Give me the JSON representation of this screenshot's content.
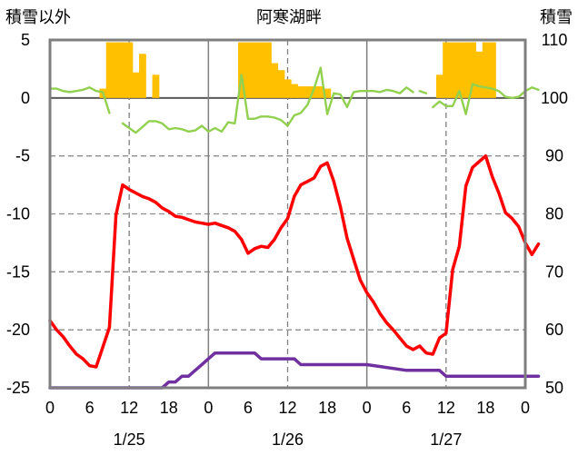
{
  "chart_data": {
    "type": "line",
    "title": "阿寒湖畔",
    "left_axis_label": "積雪以外",
    "right_axis_label": "積雪",
    "y_left": {
      "min": -25,
      "max": 5,
      "ticks": [
        5,
        0,
        -5,
        -10,
        -15,
        -20,
        -25
      ]
    },
    "y_right": {
      "min": 50,
      "max": 110,
      "ticks": [
        110,
        100,
        90,
        80,
        70,
        60,
        50
      ]
    },
    "x": {
      "min": 0,
      "max": 72,
      "hour_ticks": [
        0,
        6,
        12,
        18,
        0,
        6,
        12,
        18,
        0,
        6,
        12,
        18,
        0
      ]
    },
    "days": [
      "1/25",
      "1/26",
      "1/27"
    ],
    "day_label_hours": [
      12,
      36,
      60
    ],
    "grid": "dashed",
    "colors": {
      "bars": "#FFC000",
      "red": "#FF0000",
      "green": "#92D050",
      "purple": "#7030A0"
    },
    "series": [
      {
        "axis": "left",
        "color": "#FF0000",
        "values": [
          [
            0,
            -19.2
          ],
          [
            1,
            -20.0
          ],
          [
            2,
            -20.6
          ],
          [
            3,
            -21.4
          ],
          [
            4,
            -22.1
          ],
          [
            5,
            -22.5
          ],
          [
            6,
            -23.1
          ],
          [
            7,
            -23.2
          ],
          [
            8,
            -21.5
          ],
          [
            9,
            -19.8
          ],
          [
            10,
            -10.1
          ],
          [
            11,
            -7.5
          ],
          [
            12,
            -7.9
          ],
          [
            13,
            -8.2
          ],
          [
            14,
            -8.5
          ],
          [
            15,
            -8.7
          ],
          [
            16,
            -9.0
          ],
          [
            17,
            -9.5
          ],
          [
            18,
            -9.8
          ],
          [
            19,
            -10.2
          ],
          [
            20,
            -10.3
          ],
          [
            21,
            -10.5
          ],
          [
            22,
            -10.7
          ],
          [
            23,
            -10.8
          ],
          [
            24,
            -10.9
          ],
          [
            25,
            -10.8
          ],
          [
            26,
            -11.0
          ],
          [
            27,
            -11.2
          ],
          [
            28,
            -11.5
          ],
          [
            29,
            -12.2
          ],
          [
            30,
            -13.4
          ],
          [
            31,
            -13.0
          ],
          [
            32,
            -12.8
          ],
          [
            33,
            -12.9
          ],
          [
            34,
            -12.2
          ],
          [
            35,
            -11.2
          ],
          [
            36,
            -10.4
          ],
          [
            37,
            -8.5
          ],
          [
            38,
            -7.5
          ],
          [
            39,
            -7.2
          ],
          [
            40,
            -6.9
          ],
          [
            41,
            -5.9
          ],
          [
            42,
            -5.6
          ],
          [
            43,
            -7.2
          ],
          [
            44,
            -9.4
          ],
          [
            45,
            -12.1
          ],
          [
            46,
            -13.9
          ],
          [
            47,
            -15.7
          ],
          [
            48,
            -16.8
          ],
          [
            49,
            -17.6
          ],
          [
            50,
            -18.6
          ],
          [
            51,
            -19.4
          ],
          [
            52,
            -20.0
          ],
          [
            53,
            -20.7
          ],
          [
            54,
            -21.4
          ],
          [
            55,
            -21.7
          ],
          [
            56,
            -21.4
          ],
          [
            57,
            -22.0
          ],
          [
            58,
            -22.1
          ],
          [
            59,
            -20.7
          ],
          [
            60,
            -20.3
          ],
          [
            61,
            -14.8
          ],
          [
            62,
            -12.8
          ],
          [
            63,
            -7.6
          ],
          [
            64,
            -6.0
          ],
          [
            65,
            -5.5
          ],
          [
            66,
            -5.0
          ],
          [
            67,
            -6.8
          ],
          [
            68,
            -8.2
          ],
          [
            69,
            -9.9
          ],
          [
            70,
            -10.4
          ],
          [
            71,
            -11.1
          ],
          [
            72,
            -12.5
          ],
          [
            73,
            -13.5
          ],
          [
            74,
            -12.6
          ]
        ]
      },
      {
        "axis": "left",
        "color": "#92D050",
        "values": [
          [
            0,
            0.8
          ],
          [
            1,
            0.8
          ],
          [
            2,
            0.6
          ],
          [
            3,
            0.5
          ],
          [
            4,
            0.6
          ],
          [
            5,
            0.7
          ],
          [
            6,
            0.9
          ],
          [
            7,
            0.6
          ],
          [
            8,
            0.5
          ],
          [
            9,
            -1.3
          ],
          [
            null,
            null
          ],
          [
            11,
            -2.2
          ],
          [
            12,
            -2.6
          ],
          [
            13,
            -3.0
          ],
          [
            14,
            -2.5
          ],
          [
            15,
            -2.0
          ],
          [
            16,
            -2.0
          ],
          [
            17,
            -2.2
          ],
          [
            18,
            -2.7
          ],
          [
            19,
            -2.6
          ],
          [
            20,
            -2.7
          ],
          [
            21,
            -2.9
          ],
          [
            22,
            -2.8
          ],
          [
            23,
            -2.4
          ],
          [
            24,
            -2.9
          ],
          [
            25,
            -2.6
          ],
          [
            26,
            -2.9
          ],
          [
            27,
            -2.1
          ],
          [
            28,
            -2.2
          ],
          [
            29,
            2.0
          ],
          [
            30,
            -1.8
          ],
          [
            31,
            -1.8
          ],
          [
            32,
            -1.6
          ],
          [
            33,
            -1.6
          ],
          [
            34,
            -1.7
          ],
          [
            35,
            -1.9
          ],
          [
            36,
            -2.4
          ],
          [
            37,
            -1.5
          ],
          [
            38,
            -1.3
          ],
          [
            39,
            -0.6
          ],
          [
            40,
            0.8
          ],
          [
            41,
            2.6
          ],
          [
            42,
            -1.4
          ],
          [
            43,
            0.4
          ],
          [
            44,
            0.3
          ],
          [
            45,
            -0.8
          ],
          [
            46,
            0.5
          ],
          [
            47,
            0.6
          ],
          [
            48,
            0.6
          ],
          [
            49,
            0.6
          ],
          [
            50,
            0.5
          ],
          [
            51,
            0.7
          ],
          [
            52,
            0.6
          ],
          [
            53,
            0.4
          ],
          [
            54,
            0.9
          ],
          [
            55,
            0.5
          ],
          [
            null,
            null
          ],
          [
            56,
            0.6
          ],
          [
            57,
            0.4
          ],
          [
            null,
            null
          ],
          [
            58,
            -0.8
          ],
          [
            59,
            -0.3
          ],
          [
            60,
            -0.7
          ],
          [
            61,
            -0.7
          ],
          [
            62,
            0.6
          ],
          [
            63,
            -1.4
          ],
          [
            64,
            1.2
          ],
          [
            65,
            1.0
          ],
          [
            66,
            0.9
          ],
          [
            67,
            0.8
          ],
          [
            68,
            0.6
          ],
          [
            69,
            0.1
          ],
          [
            70,
            0.0
          ],
          [
            71,
            0.1
          ],
          [
            72,
            0.6
          ],
          [
            73,
            0.9
          ],
          [
            74,
            0.7
          ]
        ]
      },
      {
        "axis": "right",
        "color": "#7030A0",
        "values": [
          [
            0,
            50
          ],
          [
            16,
            50
          ],
          [
            17,
            50
          ],
          [
            18,
            51
          ],
          [
            19,
            51
          ],
          [
            20,
            52
          ],
          [
            21,
            52
          ],
          [
            22,
            53
          ],
          [
            23,
            54
          ],
          [
            24,
            55
          ],
          [
            25,
            56
          ],
          [
            31,
            56
          ],
          [
            32,
            55
          ],
          [
            37,
            55
          ],
          [
            38,
            54
          ],
          [
            47,
            54
          ],
          [
            48,
            54
          ],
          [
            54,
            53
          ],
          [
            55,
            53
          ],
          [
            56,
            53
          ],
          [
            57,
            53
          ],
          [
            58,
            53
          ],
          [
            59,
            53
          ],
          [
            60,
            52
          ],
          [
            74,
            52
          ]
        ]
      }
    ],
    "bars": [
      {
        "hour": 8,
        "value": 0.8
      },
      {
        "hour": 9,
        "value": 4.8
      },
      {
        "hour": 10,
        "value": 4.8
      },
      {
        "hour": 11,
        "value": 4.8
      },
      {
        "hour": 12,
        "value": 4.8
      },
      {
        "hour": 13,
        "value": 2.2
      },
      {
        "hour": 14,
        "value": 3.8
      },
      {
        "hour": 16,
        "value": 2.0
      },
      {
        "hour": 29,
        "value": 4.8
      },
      {
        "hour": 30,
        "value": 4.8
      },
      {
        "hour": 31,
        "value": 4.8
      },
      {
        "hour": 32,
        "value": 4.8
      },
      {
        "hour": 33,
        "value": 4.8
      },
      {
        "hour": 34,
        "value": 3.0
      },
      {
        "hour": 35,
        "value": 2.4
      },
      {
        "hour": 36,
        "value": 1.6
      },
      {
        "hour": 37,
        "value": 1.2
      },
      {
        "hour": 38,
        "value": 1.0
      },
      {
        "hour": 39,
        "value": 1.0
      },
      {
        "hour": 40,
        "value": 1.0
      },
      {
        "hour": 41,
        "value": 1.0
      },
      {
        "hour": 42,
        "value": 0.8
      },
      {
        "hour": 59,
        "value": 2.0
      },
      {
        "hour": 60,
        "value": 4.8
      },
      {
        "hour": 61,
        "value": 4.8
      },
      {
        "hour": 62,
        "value": 4.8
      },
      {
        "hour": 63,
        "value": 4.8
      },
      {
        "hour": 64,
        "value": 4.8
      },
      {
        "hour": 65,
        "value": 4.0
      },
      {
        "hour": 66,
        "value": 4.8
      },
      {
        "hour": 67,
        "value": 4.8
      }
    ]
  }
}
